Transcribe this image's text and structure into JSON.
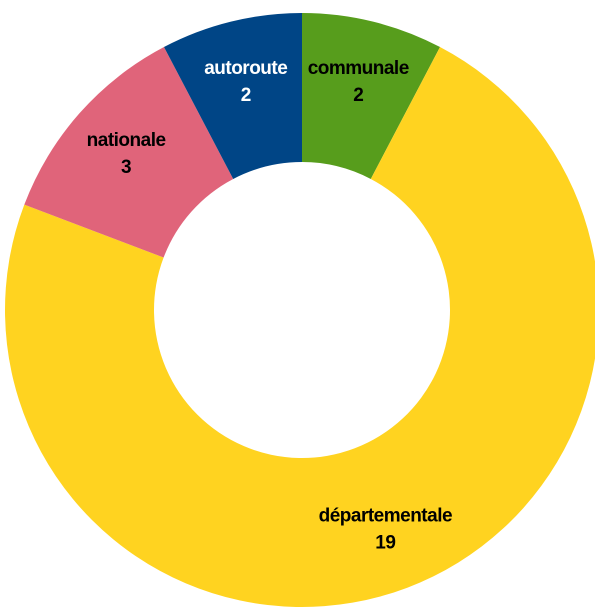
{
  "chart_data": {
    "type": "donut",
    "categories": [
      "communale",
      "départementale",
      "nationale",
      "autoroute"
    ],
    "values": [
      2,
      19,
      3,
      2
    ],
    "colors": [
      "#579d1c",
      "#ffd320",
      "#e0647a",
      "#004586"
    ],
    "label_colors": [
      "#000000",
      "#000000",
      "#000000",
      "#ffffff"
    ]
  }
}
